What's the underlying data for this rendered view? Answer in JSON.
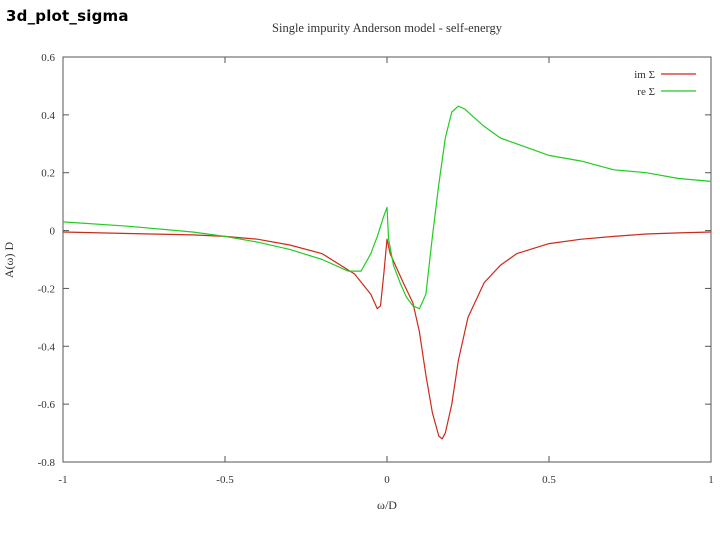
{
  "slide": {
    "title": "3d_plot_sigma"
  },
  "chart_data": {
    "type": "line",
    "title": "Single impurity Anderson model - self-energy",
    "xlabel": "ω/D",
    "ylabel": "A(ω) D",
    "xlim": [
      -1,
      1
    ],
    "ylim": [
      -0.8,
      0.6
    ],
    "x_ticks": [
      -1,
      -0.5,
      0,
      0.5,
      1
    ],
    "x_tick_labels": [
      "-1",
      "-0.5",
      "0",
      "0.5",
      "1"
    ],
    "y_ticks": [
      -0.8,
      -0.6,
      -0.4,
      -0.2,
      0,
      0.2,
      0.4,
      0.6
    ],
    "y_tick_labels": [
      "-0.8",
      "-0.6",
      "-0.4",
      "-0.2",
      "0",
      "0.2",
      "0.4",
      "0.6"
    ],
    "grid": false,
    "legend_position": "top-right",
    "series": [
      {
        "name": "im Σ",
        "color": "#cc2a1a",
        "x": [
          -1,
          -0.8,
          -0.6,
          -0.5,
          -0.4,
          -0.3,
          -0.2,
          -0.1,
          -0.05,
          -0.03,
          -0.02,
          -0.01,
          0.0,
          0.01,
          0.03,
          0.05,
          0.08,
          0.1,
          0.12,
          0.14,
          0.16,
          0.17,
          0.18,
          0.2,
          0.22,
          0.25,
          0.3,
          0.35,
          0.4,
          0.5,
          0.6,
          0.7,
          0.8,
          0.9,
          1.0
        ],
        "y": [
          -0.005,
          -0.01,
          -0.015,
          -0.02,
          -0.03,
          -0.05,
          -0.08,
          -0.15,
          -0.22,
          -0.27,
          -0.26,
          -0.15,
          -0.03,
          -0.08,
          -0.13,
          -0.18,
          -0.25,
          -0.35,
          -0.5,
          -0.63,
          -0.71,
          -0.72,
          -0.7,
          -0.6,
          -0.45,
          -0.3,
          -0.18,
          -0.12,
          -0.08,
          -0.045,
          -0.03,
          -0.02,
          -0.012,
          -0.008,
          -0.005
        ]
      },
      {
        "name": "re Σ",
        "color": "#22cc22",
        "x": [
          -1,
          -0.8,
          -0.6,
          -0.5,
          -0.4,
          -0.3,
          -0.2,
          -0.12,
          -0.08,
          -0.05,
          -0.03,
          -0.01,
          0.0,
          0.005,
          0.02,
          0.04,
          0.06,
          0.08,
          0.1,
          0.12,
          0.14,
          0.16,
          0.18,
          0.2,
          0.22,
          0.24,
          0.26,
          0.3,
          0.35,
          0.4,
          0.5,
          0.6,
          0.7,
          0.8,
          0.9,
          1.0
        ],
        "y": [
          0.03,
          0.015,
          -0.005,
          -0.02,
          -0.04,
          -0.065,
          -0.1,
          -0.14,
          -0.14,
          -0.08,
          -0.02,
          0.05,
          0.08,
          -0.03,
          -0.12,
          -0.18,
          -0.23,
          -0.26,
          -0.27,
          -0.22,
          -0.02,
          0.16,
          0.32,
          0.41,
          0.43,
          0.42,
          0.4,
          0.36,
          0.32,
          0.3,
          0.26,
          0.24,
          0.21,
          0.2,
          0.18,
          0.17
        ]
      }
    ]
  }
}
